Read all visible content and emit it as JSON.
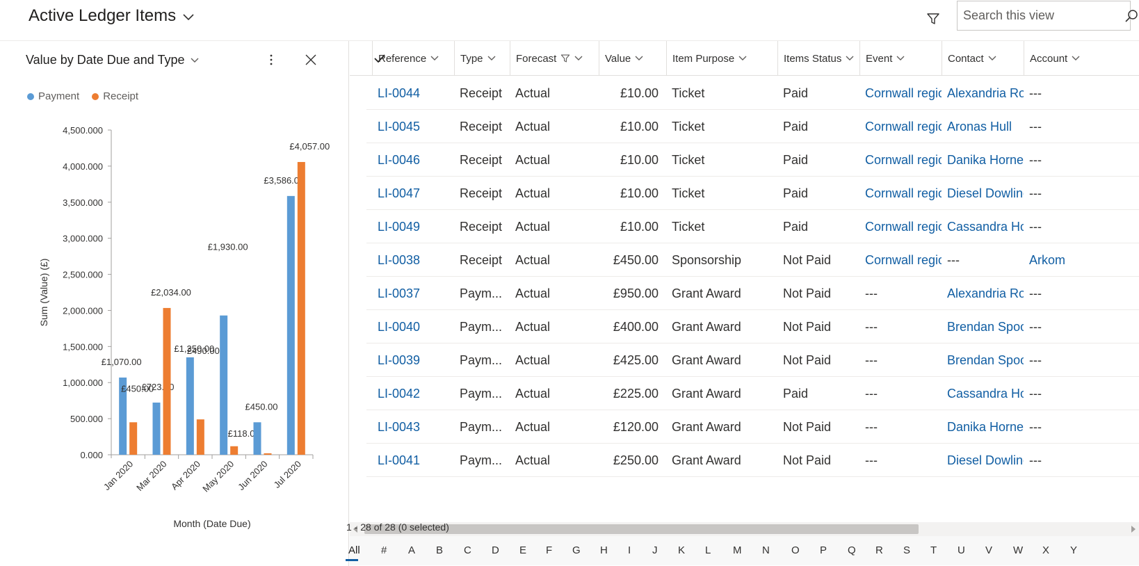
{
  "header": {
    "view_title": "Active Ledger Items",
    "search_placeholder": "Search this view"
  },
  "chart_panel": {
    "title": "Value by Date Due and Type",
    "legend": [
      {
        "name": "Payment",
        "color": "#5b9bd5"
      },
      {
        "name": "Receipt",
        "color": "#ed7d31"
      }
    ]
  },
  "chart_data": {
    "type": "bar",
    "title": "Value by Date Due and Type",
    "xlabel": "Month (Date Due)",
    "ylabel": "Sum (Value) (£)",
    "ylim": [
      0,
      4500
    ],
    "yticks": [
      "0.000",
      "500.000",
      "1,000.000",
      "1,500.000",
      "2,000.000",
      "2,500.000",
      "3,000.000",
      "3,500.000",
      "4,000.000",
      "4,500.000"
    ],
    "categories": [
      "Jan 2020",
      "Mar 2020",
      "Apr 2020",
      "May 2020",
      "Jun 2020",
      "Jul 2020"
    ],
    "series": [
      {
        "name": "Payment",
        "color": "#5b9bd5",
        "values": [
          1070,
          723,
          1350,
          1930,
          450,
          3586
        ],
        "labels": [
          "£1,070.00",
          "£723.00",
          "£1,350.00",
          "£1,930.00",
          "£450.00",
          "£3,586.00"
        ]
      },
      {
        "name": "Receipt",
        "color": "#ed7d31",
        "values": [
          450,
          2034,
          490,
          118,
          20,
          4057
        ],
        "labels": [
          "£450.00",
          "£2,034.00",
          "£490.00",
          "£118.00",
          "",
          "£4,057.00"
        ]
      }
    ],
    "grid": false,
    "legend": "top-left"
  },
  "grid": {
    "columns": [
      "Reference",
      "Type",
      "Forecast",
      "Value",
      "Item Purpose",
      "Items Status",
      "Event",
      "Contact",
      "Account"
    ],
    "rows": [
      {
        "reference": "LI-0044",
        "type": "Receipt",
        "forecast": "Actual",
        "value": "£10.00",
        "purpose": "Ticket",
        "status": "Paid",
        "event": "Cornwall regional",
        "contact": "Alexandria Robinson",
        "account": "---"
      },
      {
        "reference": "LI-0045",
        "type": "Receipt",
        "forecast": "Actual",
        "value": "£10.00",
        "purpose": "Ticket",
        "status": "Paid",
        "event": "Cornwall regional",
        "contact": "Aronas Hull",
        "account": "---"
      },
      {
        "reference": "LI-0046",
        "type": "Receipt",
        "forecast": "Actual",
        "value": "£10.00",
        "purpose": "Ticket",
        "status": "Paid",
        "event": "Cornwall regional",
        "contact": "Danika Horner.",
        "account": "---"
      },
      {
        "reference": "LI-0047",
        "type": "Receipt",
        "forecast": "Actual",
        "value": "£10.00",
        "purpose": "Ticket",
        "status": "Paid",
        "event": "Cornwall regional",
        "contact": "Diesel Dowling",
        "account": "---"
      },
      {
        "reference": "LI-0049",
        "type": "Receipt",
        "forecast": "Actual",
        "value": "£10.00",
        "purpose": "Ticket",
        "status": "Paid",
        "event": "Cornwall regional",
        "contact": "Cassandra Houston",
        "account": "---"
      },
      {
        "reference": "LI-0038",
        "type": "Receipt",
        "forecast": "Actual",
        "value": "£450.00",
        "purpose": "Sponsorship",
        "status": "Not Paid",
        "event": "Cornwall regional",
        "contact": "---",
        "account": "Arkom"
      },
      {
        "reference": "LI-0037",
        "type": "Paym...",
        "forecast": "Actual",
        "value": "£950.00",
        "purpose": "Grant Award",
        "status": "Not Paid",
        "event": "---",
        "contact": "Alexandria Robinson",
        "account": "---"
      },
      {
        "reference": "LI-0040",
        "type": "Paym...",
        "forecast": "Actual",
        "value": "£400.00",
        "purpose": "Grant Award",
        "status": "Not Paid",
        "event": "---",
        "contact": "Brendan Spooner",
        "account": "---"
      },
      {
        "reference": "LI-0039",
        "type": "Paym...",
        "forecast": "Actual",
        "value": "£425.00",
        "purpose": "Grant Award",
        "status": "Not Paid",
        "event": "---",
        "contact": "Brendan Spooner",
        "account": "---"
      },
      {
        "reference": "LI-0042",
        "type": "Paym...",
        "forecast": "Actual",
        "value": "£225.00",
        "purpose": "Grant Award",
        "status": "Paid",
        "event": "---",
        "contact": "Cassandra Houston",
        "account": "---"
      },
      {
        "reference": "LI-0043",
        "type": "Paym...",
        "forecast": "Actual",
        "value": "£120.00",
        "purpose": "Grant Award",
        "status": "Not Paid",
        "event": "---",
        "contact": "Danika Horner.",
        "account": "---"
      },
      {
        "reference": "LI-0041",
        "type": "Paym...",
        "forecast": "Actual",
        "value": "£250.00",
        "purpose": "Grant Award",
        "status": "Not Paid",
        "event": "---",
        "contact": "Diesel Dowling",
        "account": "---"
      }
    ]
  },
  "jumpbar": [
    "All",
    "#",
    "A",
    "B",
    "C",
    "D",
    "E",
    "F",
    "G",
    "H",
    "I",
    "J",
    "K",
    "L",
    "M",
    "N",
    "O",
    "P",
    "Q",
    "R",
    "S",
    "T",
    "U",
    "V",
    "W",
    "X",
    "Y"
  ],
  "footer": {
    "status": "1 - 28 of 28 (0 selected)"
  },
  "colors": {
    "link": "#115ea3",
    "payment": "#5b9bd5",
    "receipt": "#ed7d31"
  }
}
